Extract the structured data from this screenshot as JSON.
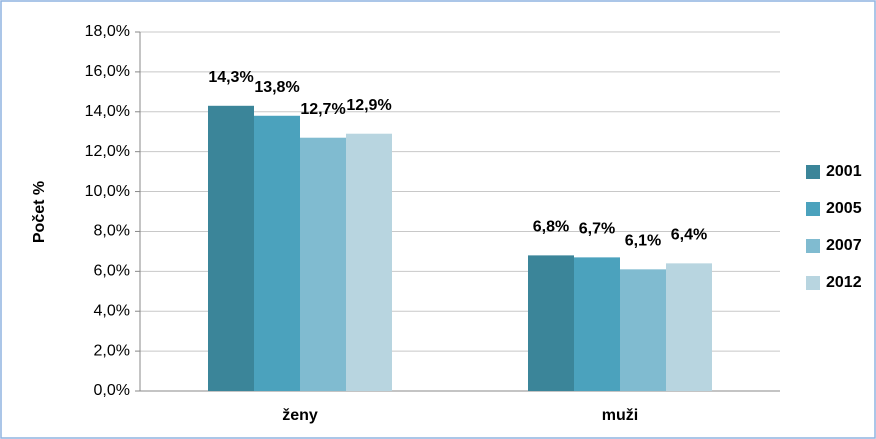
{
  "chart_data": {
    "type": "bar",
    "y_label": "Počet %",
    "categories": [
      "ženy",
      "muži"
    ],
    "series": [
      {
        "name": "2001",
        "color": "#3b8599",
        "values": [
          14.3,
          6.8
        ],
        "value_labels": [
          "14,3%",
          "6,8%"
        ]
      },
      {
        "name": "2005",
        "color": "#4ba2bd",
        "values": [
          13.8,
          6.7
        ],
        "value_labels": [
          "13,8%",
          "6,7%"
        ]
      },
      {
        "name": "2007",
        "color": "#80bbd0",
        "values": [
          12.7,
          6.1
        ],
        "value_labels": [
          "12,7%",
          "6,1%"
        ]
      },
      {
        "name": "2012",
        "color": "#b8d5e0",
        "values": [
          12.9,
          6.4
        ],
        "value_labels": [
          "12,9%",
          "6,4%"
        ]
      }
    ],
    "ylim": [
      0,
      18
    ],
    "yticks": [
      {
        "value": 0,
        "label": "0,0%"
      },
      {
        "value": 2,
        "label": "2,0%"
      },
      {
        "value": 4,
        "label": "4,0%"
      },
      {
        "value": 6,
        "label": "6,0%"
      },
      {
        "value": 8,
        "label": "8,0%"
      },
      {
        "value": 10,
        "label": "10,0%"
      },
      {
        "value": 12,
        "label": "12,0%"
      },
      {
        "value": 14,
        "label": "14,0%"
      },
      {
        "value": 16,
        "label": "16,0%"
      },
      {
        "value": 18,
        "label": "18,0%"
      }
    ],
    "grid": true,
    "legend": "right"
  }
}
